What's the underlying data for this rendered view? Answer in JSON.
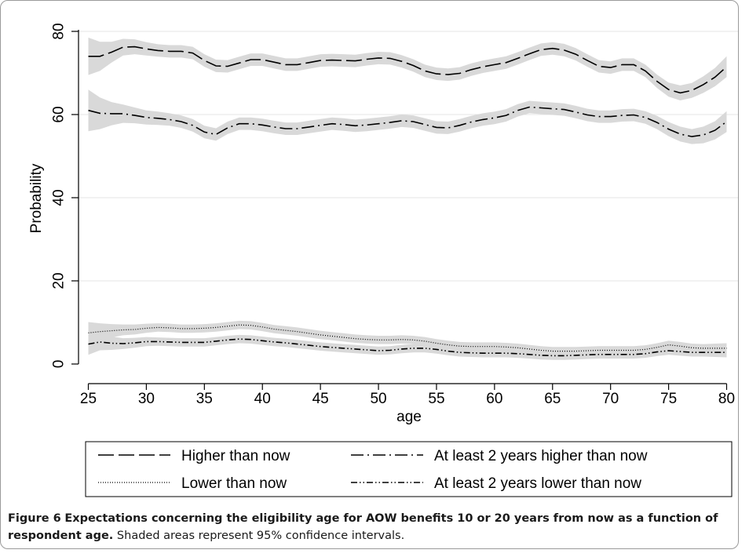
{
  "chart_data": {
    "type": "line",
    "xlabel": "age",
    "ylabel": "Probability",
    "xlim": [
      25,
      80
    ],
    "ylim": [
      0,
      80
    ],
    "xticks": [
      25,
      30,
      35,
      40,
      45,
      50,
      55,
      60,
      65,
      70,
      75,
      80
    ],
    "yticks": [
      0,
      20,
      40,
      60,
      80
    ],
    "grid": "horizontal",
    "legend_placement": "bottom",
    "x": [
      25,
      26,
      27,
      28,
      29,
      30,
      31,
      32,
      33,
      34,
      35,
      36,
      37,
      38,
      39,
      40,
      41,
      42,
      43,
      44,
      45,
      46,
      47,
      48,
      49,
      50,
      51,
      52,
      53,
      54,
      55,
      56,
      57,
      58,
      59,
      60,
      61,
      62,
      63,
      64,
      65,
      66,
      67,
      68,
      69,
      70,
      71,
      72,
      73,
      74,
      75,
      76,
      77,
      78,
      79,
      80
    ],
    "series": [
      {
        "name": "Higher than now",
        "dash": "long-dash",
        "values": [
          74,
          74,
          75,
          76.2,
          76.3,
          75.8,
          75.4,
          75.2,
          75.2,
          74.8,
          73,
          71.7,
          71.6,
          72.4,
          73.2,
          73.2,
          72.6,
          72,
          72,
          72.5,
          73,
          73.1,
          73,
          72.9,
          73.3,
          73.6,
          73.5,
          72.8,
          71.8,
          70.5,
          69.8,
          69.6,
          69.9,
          70.8,
          71.5,
          72,
          72.5,
          73.5,
          74.6,
          75.6,
          75.9,
          75.5,
          74.5,
          73,
          71.6,
          71.3,
          72,
          72,
          70.5,
          68,
          66,
          65.2,
          65.8,
          67.2,
          69,
          71.5
        ],
        "ci": [
          4.5,
          3.5,
          2.5,
          2,
          1.8,
          1.6,
          1.5,
          1.5,
          1.5,
          1.5,
          1.5,
          1.5,
          1.5,
          1.5,
          1.5,
          1.5,
          1.5,
          1.5,
          1.5,
          1.5,
          1.5,
          1.5,
          1.5,
          1.5,
          1.5,
          1.5,
          1.5,
          1.5,
          1.5,
          1.5,
          1.5,
          1.5,
          1.5,
          1.5,
          1.5,
          1.5,
          1.5,
          1.5,
          1.5,
          1.5,
          1.5,
          1.5,
          1.5,
          1.5,
          1.5,
          1.5,
          1.5,
          1.5,
          1.5,
          1.6,
          1.7,
          1.8,
          1.8,
          2,
          2.2,
          2.5
        ]
      },
      {
        "name": "At least 2 years higher than now",
        "dash": "long-dash-dot",
        "values": [
          61,
          60.3,
          60.2,
          60.2,
          59.8,
          59.3,
          59.1,
          58.8,
          58.3,
          57.4,
          55.8,
          55.2,
          56.8,
          57.8,
          57.8,
          57.5,
          57,
          56.6,
          56.6,
          57,
          57.4,
          57.8,
          57.6,
          57.3,
          57.5,
          57.8,
          58.1,
          58.5,
          58.3,
          57.6,
          56.9,
          56.8,
          57.4,
          58.2,
          58.8,
          59.2,
          59.8,
          61,
          61.8,
          61.6,
          61.4,
          61.2,
          60.6,
          59.9,
          59.5,
          59.5,
          59.8,
          59.9,
          59.3,
          58.1,
          56.5,
          55.3,
          54.7,
          55.1,
          56.2,
          58.3
        ],
        "ci": [
          5,
          3.8,
          2.8,
          2.2,
          1.9,
          1.7,
          1.6,
          1.5,
          1.5,
          1.5,
          1.5,
          1.5,
          1.5,
          1.5,
          1.5,
          1.5,
          1.5,
          1.5,
          1.5,
          1.5,
          1.5,
          1.5,
          1.5,
          1.5,
          1.5,
          1.5,
          1.5,
          1.5,
          1.5,
          1.5,
          1.5,
          1.5,
          1.5,
          1.5,
          1.5,
          1.5,
          1.5,
          1.5,
          1.5,
          1.5,
          1.5,
          1.5,
          1.5,
          1.5,
          1.5,
          1.5,
          1.5,
          1.5,
          1.5,
          1.6,
          1.7,
          1.8,
          1.8,
          2,
          2.2,
          2.5
        ]
      },
      {
        "name": "Lower than now",
        "dash": "dotted",
        "values": [
          7.5,
          7.8,
          8,
          8.2,
          8.3,
          8.6,
          8.8,
          8.7,
          8.5,
          8.5,
          8.6,
          8.8,
          9.1,
          9.4,
          9.3,
          8.9,
          8.4,
          8.1,
          7.8,
          7.4,
          7,
          6.7,
          6.4,
          6.1,
          5.9,
          5.8,
          5.8,
          5.9,
          5.8,
          5.5,
          5,
          4.6,
          4.3,
          4.2,
          4.2,
          4.2,
          4.1,
          3.9,
          3.6,
          3.3,
          3.1,
          3.1,
          3.1,
          3.2,
          3.3,
          3.3,
          3.3,
          3.3,
          3.5,
          4,
          4.6,
          4.3,
          3.9,
          3.8,
          3.8,
          3.8
        ],
        "ci": [
          2.6,
          2,
          1.6,
          1.3,
          1.2,
          1.1,
          1,
          1,
          1,
          1,
          1,
          1,
          1,
          1,
          1,
          1,
          1,
          1,
          1,
          1,
          1,
          1,
          1,
          1,
          1,
          1,
          1,
          1,
          1,
          1,
          1,
          1,
          1,
          1,
          1,
          1,
          1,
          1,
          1,
          1,
          1,
          1,
          1,
          1,
          1,
          1,
          1,
          1,
          1,
          1,
          1,
          1,
          1,
          1,
          1.1,
          1.2
        ]
      },
      {
        "name": "At least 2 years lower than now",
        "dash": "dash-dot-dot",
        "values": [
          4.8,
          5.3,
          5,
          4.9,
          5.1,
          5.4,
          5.4,
          5.3,
          5.2,
          5.2,
          5.2,
          5.5,
          5.8,
          6,
          5.9,
          5.6,
          5.3,
          5.1,
          4.8,
          4.5,
          4.2,
          4,
          3.8,
          3.6,
          3.4,
          3.2,
          3.3,
          3.6,
          3.8,
          3.8,
          3.5,
          3.1,
          2.8,
          2.7,
          2.6,
          2.6,
          2.6,
          2.5,
          2.3,
          2.1,
          2,
          2,
          2.1,
          2.2,
          2.3,
          2.3,
          2.3,
          2.3,
          2.5,
          2.9,
          3.2,
          3,
          2.8,
          2.8,
          2.8,
          2.8
        ],
        "ci": [
          2.6,
          2,
          1.6,
          1.3,
          1.2,
          1.1,
          1,
          1,
          1,
          1,
          1,
          1,
          1,
          1,
          1,
          1,
          1,
          1,
          1,
          1,
          1,
          1,
          1,
          1,
          1,
          1,
          1,
          1,
          1,
          1,
          1,
          1,
          1,
          1,
          1,
          1,
          1,
          1,
          1,
          1,
          1,
          1,
          1,
          1,
          1,
          1,
          1,
          1,
          1,
          1,
          1,
          1,
          1,
          1,
          1.1,
          1.2
        ]
      }
    ]
  },
  "caption": {
    "label": "Figure 6",
    "title": "Expectations concerning the eligibility age for AOW benefits 10 or 20 years from now as a function of respondent age.",
    "note": "Shaded areas represent 95% confidence intervals."
  },
  "colors": {
    "band": "#d9d9d9",
    "grid": "#e6e6e6",
    "line": "#000000",
    "frame": "#9a9a9a"
  }
}
